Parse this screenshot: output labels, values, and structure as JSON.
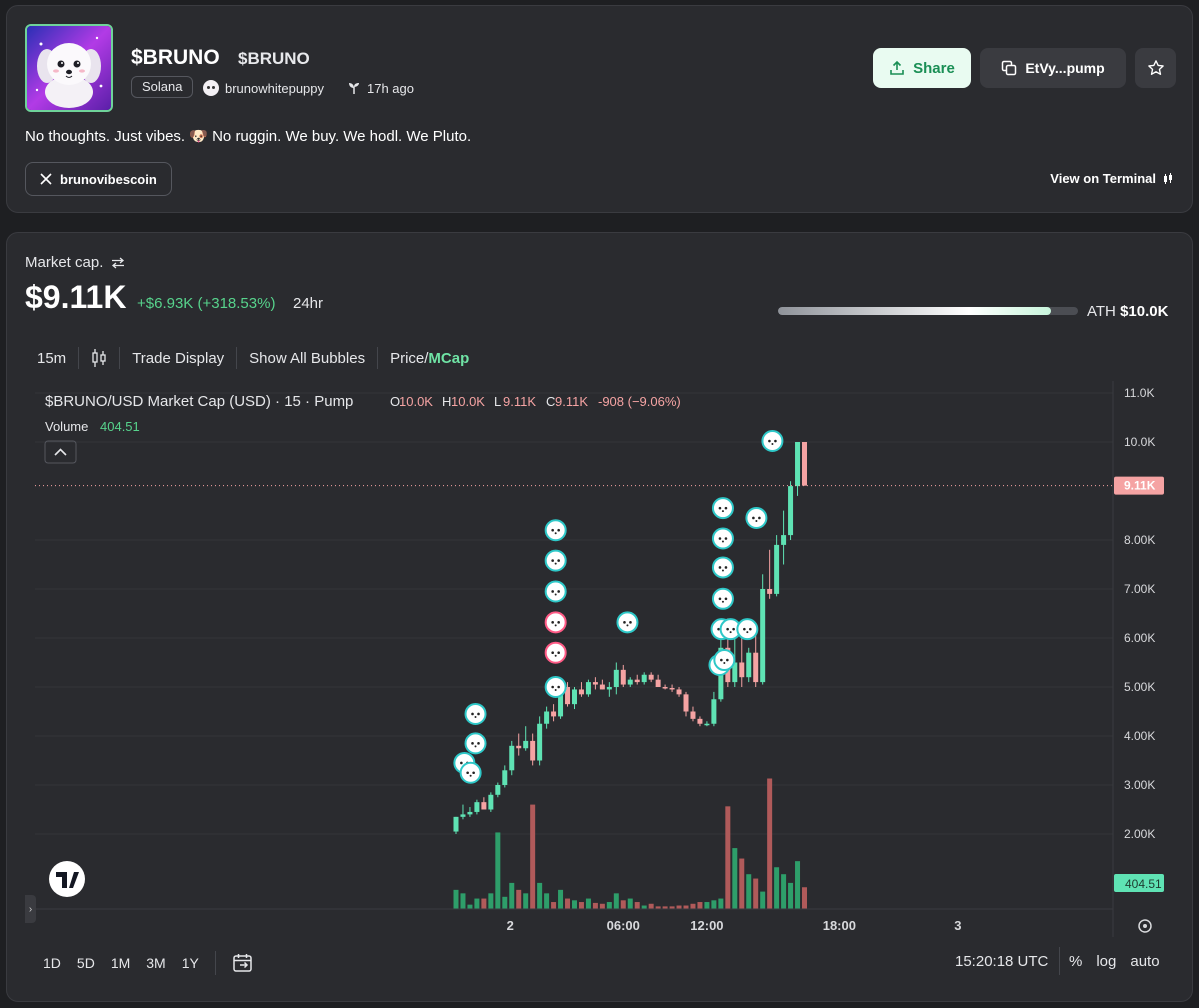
{
  "header": {
    "name": "$BRUNO",
    "ticker": "$BRUNO",
    "chain": "Solana",
    "creator": "brunowhitepuppy",
    "age": "17h ago",
    "description": "No thoughts. Just vibes. 🐶 No ruggin. We buy. We hodl. We Pluto.",
    "x_handle": "brunovibescoin",
    "share_label": "Share",
    "contract_short": "EtVy...pump",
    "terminal_label": "View on Terminal"
  },
  "market": {
    "label": "Market cap.",
    "value": "$9.11K",
    "change": "+$6.93K (+318.53%)",
    "period": "24hr",
    "ath_label": "ATH",
    "ath_value": "$10.0K",
    "ath_progress": 0.911
  },
  "toolbar": {
    "interval": "15m",
    "trade_display": "Trade Display",
    "show_bubbles": "Show All Bubbles",
    "price_label": "Price/",
    "mcap_label": "MCap"
  },
  "legend": {
    "title": "$BRUNO/USD Market Cap (USD) · 15 · Pump",
    "o_label": "O",
    "o": "10.0K",
    "h_label": "H",
    "h": "10.0K",
    "l_label": "L",
    "l": "9.11K",
    "c_label": "C",
    "c": "9.11K",
    "change": "-908 (−9.06%)",
    "volume_label": "Volume",
    "volume_value": "404.51"
  },
  "price_tag": "9.11K",
  "volume_tag": "404.51",
  "bottom": {
    "timeframes": [
      "1D",
      "5D",
      "1M",
      "3M",
      "1Y"
    ],
    "clock": "15:20:18 UTC",
    "pct": "%",
    "log": "log",
    "auto": "auto"
  },
  "colors": {
    "up": "#5fe3b4",
    "down": "#f5a3a3",
    "accent": "#57d38c",
    "bg": "#2a2b2f"
  },
  "chart_data": {
    "type": "candlestick",
    "title": "$BRUNO/USD Market Cap (USD) · 15 · Pump",
    "y_ticks": [
      "11.0K",
      "10.0K",
      "8.00K",
      "7.00K",
      "6.00K",
      "5.00K",
      "4.00K",
      "3.00K",
      "2.00K"
    ],
    "y_tick_values": [
      11000,
      10000,
      8000,
      7000,
      6000,
      5000,
      4000,
      3000,
      2000
    ],
    "ylim": [
      1500,
      11300
    ],
    "x_ticks": [
      {
        "label": "2",
        "t": 7.78
      },
      {
        "label": "06:00",
        "t": 24
      },
      {
        "label": "12:00",
        "t": 36
      },
      {
        "label": "18:00",
        "t": 55
      },
      {
        "label": "3",
        "t": 72
      }
    ],
    "candles": [
      {
        "t": 0,
        "o": 2050,
        "h": 2350,
        "l": 2000,
        "c": 2350
      },
      {
        "t": 1,
        "o": 2350,
        "h": 2600,
        "l": 2300,
        "c": 2400
      },
      {
        "t": 2,
        "o": 2400,
        "h": 2550,
        "l": 2350,
        "c": 2450
      },
      {
        "t": 3,
        "o": 2450,
        "h": 2700,
        "l": 2400,
        "c": 2650
      },
      {
        "t": 4,
        "o": 2650,
        "h": 2750,
        "l": 2500,
        "c": 2500
      },
      {
        "t": 5,
        "o": 2500,
        "h": 2850,
        "l": 2450,
        "c": 2800
      },
      {
        "t": 6,
        "o": 2800,
        "h": 3050,
        "l": 2750,
        "c": 3000
      },
      {
        "t": 7,
        "o": 3000,
        "h": 3400,
        "l": 2950,
        "c": 3300
      },
      {
        "t": 8,
        "o": 3300,
        "h": 3900,
        "l": 3200,
        "c": 3800
      },
      {
        "t": 9,
        "o": 3800,
        "h": 4050,
        "l": 3600,
        "c": 3750
      },
      {
        "t": 10,
        "o": 3750,
        "h": 4200,
        "l": 3700,
        "c": 3900
      },
      {
        "t": 11,
        "o": 3900,
        "h": 4050,
        "l": 3400,
        "c": 3500
      },
      {
        "t": 12,
        "o": 3500,
        "h": 4400,
        "l": 3400,
        "c": 4250
      },
      {
        "t": 13,
        "o": 4250,
        "h": 4600,
        "l": 4150,
        "c": 4500
      },
      {
        "t": 14,
        "o": 4500,
        "h": 4650,
        "l": 4300,
        "c": 4400
      },
      {
        "t": 15,
        "o": 4400,
        "h": 5050,
        "l": 4350,
        "c": 5000
      },
      {
        "t": 16,
        "o": 5000,
        "h": 5100,
        "l": 4600,
        "c": 4650
      },
      {
        "t": 17,
        "o": 4650,
        "h": 5000,
        "l": 4550,
        "c": 4950
      },
      {
        "t": 18,
        "o": 4950,
        "h": 5100,
        "l": 4800,
        "c": 4850
      },
      {
        "t": 19,
        "o": 4850,
        "h": 5150,
        "l": 4800,
        "c": 5100
      },
      {
        "t": 20,
        "o": 5100,
        "h": 5200,
        "l": 4950,
        "c": 5050
      },
      {
        "t": 21,
        "o": 5050,
        "h": 5150,
        "l": 4950,
        "c": 4950
      },
      {
        "t": 22,
        "o": 4950,
        "h": 5100,
        "l": 4800,
        "c": 5000
      },
      {
        "t": 23,
        "o": 5000,
        "h": 5500,
        "l": 4850,
        "c": 5350
      },
      {
        "t": 24,
        "o": 5350,
        "h": 5450,
        "l": 5000,
        "c": 5050
      },
      {
        "t": 25,
        "o": 5050,
        "h": 5200,
        "l": 5000,
        "c": 5150
      },
      {
        "t": 26,
        "o": 5150,
        "h": 5250,
        "l": 5050,
        "c": 5100
      },
      {
        "t": 27,
        "o": 5100,
        "h": 5300,
        "l": 5050,
        "c": 5250
      },
      {
        "t": 28,
        "o": 5250,
        "h": 5300,
        "l": 5100,
        "c": 5150
      },
      {
        "t": 29,
        "o": 5150,
        "h": 5250,
        "l": 5000,
        "c": 5000
      },
      {
        "t": 30,
        "o": 5000,
        "h": 5050,
        "l": 4950,
        "c": 4980
      },
      {
        "t": 31,
        "o": 4980,
        "h": 5050,
        "l": 4900,
        "c": 4950
      },
      {
        "t": 32,
        "o": 4950,
        "h": 5000,
        "l": 4800,
        "c": 4850
      },
      {
        "t": 33,
        "o": 4850,
        "h": 4900,
        "l": 4400,
        "c": 4500
      },
      {
        "t": 34,
        "o": 4500,
        "h": 4600,
        "l": 4300,
        "c": 4350
      },
      {
        "t": 35,
        "o": 4350,
        "h": 4400,
        "l": 4200,
        "c": 4250
      },
      {
        "t": 36,
        "o": 4250,
        "h": 4300,
        "l": 4200,
        "c": 4250
      },
      {
        "t": 37,
        "o": 4250,
        "h": 4900,
        "l": 4200,
        "c": 4750
      },
      {
        "t": 38,
        "o": 4750,
        "h": 6100,
        "l": 4700,
        "c": 5800
      },
      {
        "t": 39,
        "o": 5800,
        "h": 6400,
        "l": 5000,
        "c": 5100
      },
      {
        "t": 40,
        "o": 5100,
        "h": 6000,
        "l": 5000,
        "c": 5500
      },
      {
        "t": 41,
        "o": 5500,
        "h": 6300,
        "l": 5000,
        "c": 5200
      },
      {
        "t": 42,
        "o": 5200,
        "h": 5800,
        "l": 5100,
        "c": 5700
      },
      {
        "t": 43,
        "o": 5700,
        "h": 6200,
        "l": 5000,
        "c": 5100
      },
      {
        "t": 44,
        "o": 5100,
        "h": 7300,
        "l": 5050,
        "c": 7000
      },
      {
        "t": 45,
        "o": 7000,
        "h": 7800,
        "l": 6800,
        "c": 6900
      },
      {
        "t": 46,
        "o": 6900,
        "h": 8100,
        "l": 6850,
        "c": 7900
      },
      {
        "t": 47,
        "o": 7900,
        "h": 8600,
        "l": 7500,
        "c": 8100
      },
      {
        "t": 48,
        "o": 8100,
        "h": 9200,
        "l": 8000,
        "c": 9100
      },
      {
        "t": 49,
        "o": 9100,
        "h": 10000,
        "l": 8900,
        "c": 10000
      },
      {
        "t": 50,
        "o": 10000,
        "h": 10000,
        "l": 9110,
        "c": 9110
      }
    ],
    "volume": [
      22,
      18,
      5,
      12,
      12,
      18,
      88,
      14,
      30,
      22,
      18,
      120,
      30,
      18,
      8,
      22,
      12,
      10,
      8,
      12,
      7,
      6,
      8,
      18,
      10,
      12,
      8,
      4,
      6,
      3,
      3,
      3,
      4,
      4,
      6,
      8,
      8,
      10,
      12,
      118,
      70,
      58,
      40,
      35,
      20,
      150,
      48,
      40,
      30,
      55,
      25
    ],
    "last_price": 9110,
    "volume_value": 404.51,
    "bubbles": [
      {
        "t": 2.8,
        "v": 4450,
        "kind": "buy"
      },
      {
        "t": 2.8,
        "v": 3850,
        "kind": "buy"
      },
      {
        "t": 1.2,
        "v": 3450,
        "kind": "buy"
      },
      {
        "t": 2.1,
        "v": 3250,
        "kind": "buy"
      },
      {
        "t": 14.3,
        "v": 8200,
        "kind": "buy"
      },
      {
        "t": 14.3,
        "v": 7580,
        "kind": "buy"
      },
      {
        "t": 14.3,
        "v": 6950,
        "kind": "buy"
      },
      {
        "t": 14.3,
        "v": 6320,
        "kind": "sell"
      },
      {
        "t": 14.3,
        "v": 5700,
        "kind": "sell"
      },
      {
        "t": 14.3,
        "v": 5000,
        "kind": "buy"
      },
      {
        "t": 24.6,
        "v": 6320,
        "kind": "buy"
      },
      {
        "t": 38.3,
        "v": 8650,
        "kind": "buy"
      },
      {
        "t": 38.3,
        "v": 8030,
        "kind": "buy"
      },
      {
        "t": 38.3,
        "v": 7440,
        "kind": "buy"
      },
      {
        "t": 38.3,
        "v": 6800,
        "kind": "buy"
      },
      {
        "t": 38.1,
        "v": 6180,
        "kind": "buy"
      },
      {
        "t": 39.4,
        "v": 6180,
        "kind": "buy"
      },
      {
        "t": 41.8,
        "v": 6180,
        "kind": "buy"
      },
      {
        "t": 37.8,
        "v": 5450,
        "kind": "buy"
      },
      {
        "t": 38.5,
        "v": 5550,
        "kind": "buy"
      },
      {
        "t": 43.1,
        "v": 8450,
        "kind": "buy"
      },
      {
        "t": 45.4,
        "v": 10020,
        "kind": "buy"
      }
    ]
  }
}
